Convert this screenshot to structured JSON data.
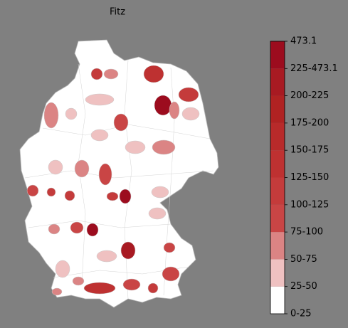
{
  "title": "Fitz",
  "colorbar": {
    "labels": [
      "0-25",
      "25-50",
      "50-75",
      "75-100",
      "100-125",
      "125-150",
      "150-175",
      "175-200",
      "200-225",
      "225-473.1",
      "473.1"
    ],
    "colors": [
      "#ffffff",
      "#efc1c1",
      "#db8484",
      "#c94545",
      "#c43b3b",
      "#be3131",
      "#b82a2a",
      "#b02222",
      "#a81a22",
      "#9c0c1e"
    ]
  }
}
